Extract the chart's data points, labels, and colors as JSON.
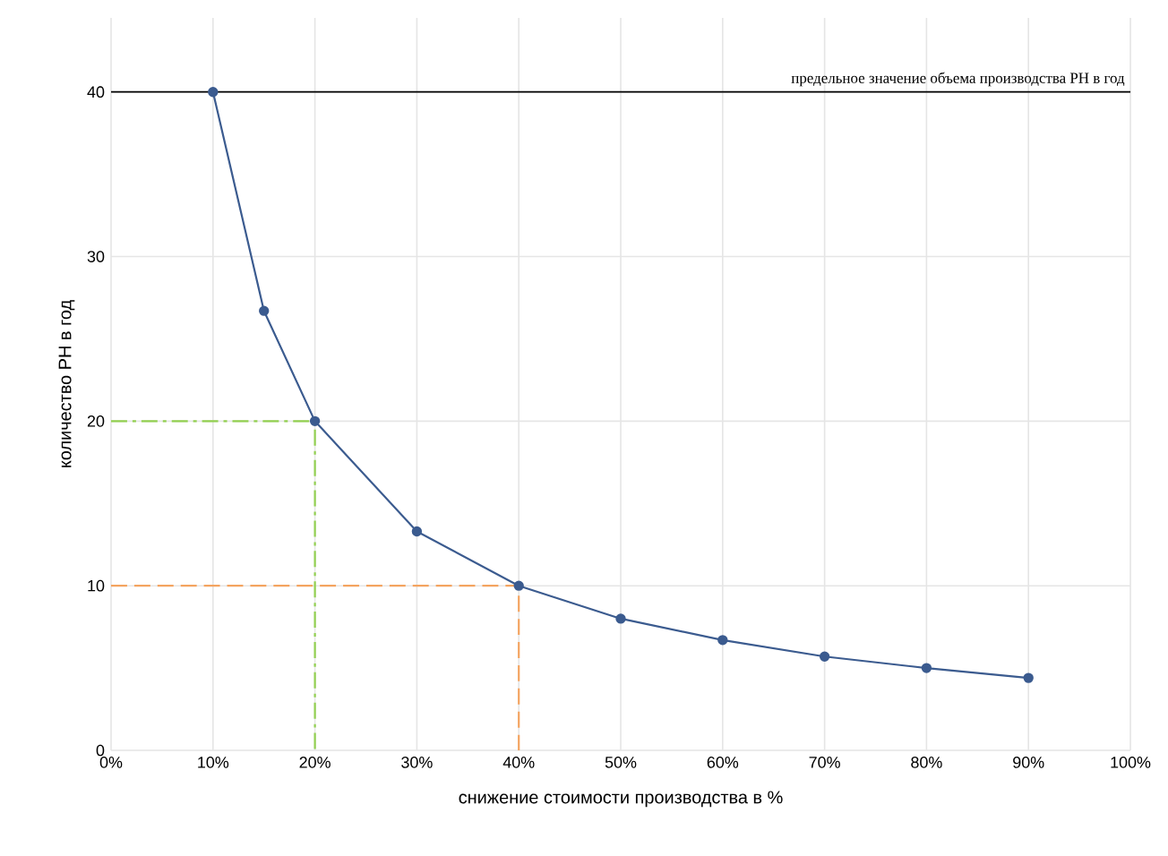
{
  "chart_data": {
    "type": "line",
    "xlabel": "снижение стоимости производства в %",
    "ylabel": "количество РН в год",
    "xlim": [
      0,
      100
    ],
    "ylim": [
      0,
      44.5
    ],
    "xticks": [
      {
        "value": 0,
        "label": "0%"
      },
      {
        "value": 10,
        "label": "10%"
      },
      {
        "value": 20,
        "label": "20%"
      },
      {
        "value": 30,
        "label": "30%"
      },
      {
        "value": 40,
        "label": "40%"
      },
      {
        "value": 50,
        "label": "50%"
      },
      {
        "value": 60,
        "label": "60%"
      },
      {
        "value": 70,
        "label": "70%"
      },
      {
        "value": 80,
        "label": "80%"
      },
      {
        "value": 90,
        "label": "90%"
      },
      {
        "value": 100,
        "label": "100%"
      }
    ],
    "yticks": [
      0,
      10,
      20,
      30,
      40
    ],
    "grid": true,
    "marker": "circle",
    "line_style": "solid",
    "series": [
      {
        "color": "#3b5b8f",
        "x": [
          10,
          15,
          20,
          30,
          40,
          50,
          60,
          70,
          80,
          90
        ],
        "values": [
          40,
          26.7,
          20,
          13.3,
          10,
          8,
          6.7,
          5.7,
          5,
          4.4
        ]
      },
      {
        "color": "#92d050",
        "x": [
          0,
          20,
          20
        ],
        "values": [
          20,
          20,
          0
        ],
        "marker": "none",
        "line_style": "dashdot"
      },
      {
        "color": "#f4a460",
        "x": [
          0,
          40,
          40
        ],
        "values": [
          10,
          10,
          0
        ],
        "marker": "none",
        "line_style": "dashed"
      }
    ],
    "ref_lines": [
      {
        "axis": "y",
        "value": 40,
        "label": "предельное значение объема производства РН в год",
        "color": "#000000"
      }
    ]
  }
}
